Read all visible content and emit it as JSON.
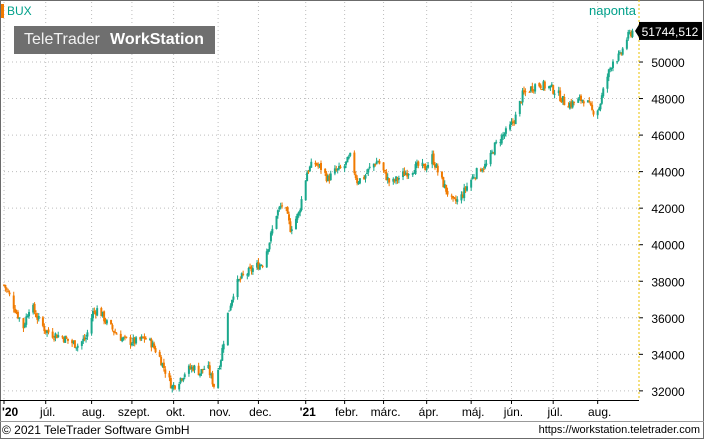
{
  "header": {
    "instrument": "BUX",
    "period": "naponta"
  },
  "logo": {
    "light": "TeleTrader",
    "bold": "WorkStation"
  },
  "footer": {
    "copyright": "© 2021 TeleTrader Software GmbH",
    "url": "https://workstation.teletrader.com"
  },
  "colors": {
    "up": "#1aa88c",
    "down": "#f07a00",
    "grid": "#bdbdbd",
    "axis_line": "#e8c200",
    "last_price_bg": "#000000",
    "last_price_fg": "#ffffff"
  },
  "chart_data": {
    "type": "candlestick",
    "title": "BUX",
    "interval": "naponta",
    "last_price": "51744,512",
    "y_ticks": [
      "32000",
      "34000",
      "36000",
      "38000",
      "40000",
      "42000",
      "44000",
      "46000",
      "48000",
      "50000"
    ],
    "ylim": [
      31500,
      52300
    ],
    "grid": true,
    "x_tick_labels": [
      "'20",
      "júl.",
      "aug.",
      "szept.",
      "okt.",
      "nov.",
      "dec.",
      "'21",
      "febr.",
      "márc.",
      "ápr.",
      "máj.",
      "jún.",
      "júl.",
      "aug."
    ],
    "x_tick_dates": [
      "2020-06-01",
      "2020-07-01",
      "2020-08-03",
      "2020-09-01",
      "2020-10-01",
      "2020-11-02",
      "2020-12-01",
      "2021-01-04",
      "2021-02-01",
      "2021-03-01",
      "2021-04-01",
      "2021-05-03",
      "2021-06-01",
      "2021-07-01",
      "2021-08-02"
    ],
    "close_series": {
      "name": "BUX",
      "dates": [
        "2020-06-01",
        "2020-06-05",
        "2020-06-10",
        "2020-06-15",
        "2020-06-20",
        "2020-06-25",
        "2020-07-01",
        "2020-07-06",
        "2020-07-12",
        "2020-07-18",
        "2020-07-24",
        "2020-07-30",
        "2020-08-04",
        "2020-08-08",
        "2020-08-14",
        "2020-08-20",
        "2020-08-26",
        "2020-08-31",
        "2020-09-05",
        "2020-09-10",
        "2020-09-15",
        "2020-09-20",
        "2020-09-25",
        "2020-09-30",
        "2020-10-05",
        "2020-10-10",
        "2020-10-15",
        "2020-10-20",
        "2020-10-25",
        "2020-10-30",
        "2020-11-04",
        "2020-11-09",
        "2020-11-14",
        "2020-11-19",
        "2020-11-24",
        "2020-11-29",
        "2020-12-04",
        "2020-12-09",
        "2020-12-14",
        "2020-12-19",
        "2020-12-24",
        "2020-12-30",
        "2021-01-05",
        "2021-01-10",
        "2021-01-15",
        "2021-01-20",
        "2021-01-25",
        "2021-01-31",
        "2021-02-05",
        "2021-02-10",
        "2021-02-15",
        "2021-02-20",
        "2021-02-25",
        "2021-03-01",
        "2021-03-06",
        "2021-03-11",
        "2021-03-16",
        "2021-03-21",
        "2021-03-26",
        "2021-03-31",
        "2021-04-05",
        "2021-04-10",
        "2021-04-15",
        "2021-04-20",
        "2021-04-25",
        "2021-04-30",
        "2021-05-05",
        "2021-05-10",
        "2021-05-15",
        "2021-05-20",
        "2021-05-25",
        "2021-05-30",
        "2021-06-04",
        "2021-06-09",
        "2021-06-14",
        "2021-06-19",
        "2021-06-24",
        "2021-06-29",
        "2021-07-04",
        "2021-07-09",
        "2021-07-14",
        "2021-07-19",
        "2021-07-24",
        "2021-07-29",
        "2021-08-03",
        "2021-08-08",
        "2021-08-13",
        "2021-08-18",
        "2021-08-23",
        "2021-08-27"
      ],
      "values": [
        37800,
        37200,
        36300,
        35500,
        36800,
        36000,
        35300,
        35100,
        35000,
        34700,
        34500,
        34900,
        36300,
        36500,
        35700,
        35200,
        34800,
        34700,
        34700,
        34900,
        34600,
        34000,
        33100,
        32200,
        32600,
        33100,
        33300,
        33000,
        33400,
        32300,
        33800,
        36200,
        37700,
        38200,
        38500,
        38800,
        39000,
        40200,
        41700,
        42300,
        40900,
        41700,
        44000,
        44500,
        44200,
        43600,
        44000,
        44200,
        44800,
        43500,
        43700,
        44300,
        44600,
        44000,
        43300,
        43600,
        43900,
        44100,
        44300,
        44200,
        44800,
        43800,
        43000,
        42300,
        42500,
        43200,
        43800,
        44200,
        44400,
        45400,
        45900,
        46300,
        47000,
        48200,
        48500,
        48800,
        48700,
        48600,
        48300,
        47800,
        47700,
        47900,
        48000,
        47300,
        47500,
        49000,
        50100,
        50300,
        51300,
        51700
      ]
    }
  }
}
